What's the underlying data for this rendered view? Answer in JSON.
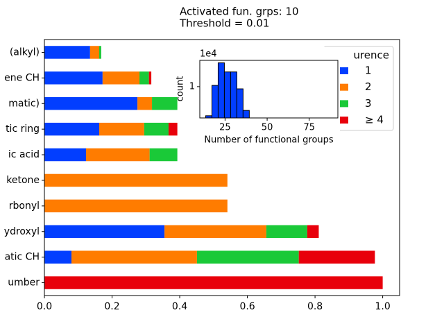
{
  "chart_data": [
    {
      "type": "barh_stacked",
      "title": [
        "Activated fun. grps: 10",
        "Threshold = 0.01"
      ],
      "categories": [
        "(alkyl)",
        "ene CH",
        "matic)",
        "tic ring",
        "ic acid",
        "ketone",
        "rbonyl",
        "ydroxyl",
        "atic CH",
        "umber"
      ],
      "series": [
        {
          "name": "1",
          "color": "#023eff",
          "values": [
            0.135,
            0.172,
            0.275,
            0.162,
            0.123,
            0,
            0,
            0.355,
            0.08,
            0
          ]
        },
        {
          "name": "2",
          "color": "#ff7c00",
          "values": [
            0.027,
            0.109,
            0.043,
            0.133,
            0.188,
            0.541,
            0.541,
            0.301,
            0.371,
            0
          ]
        },
        {
          "name": "3",
          "color": "#1ac938",
          "values": [
            0.006,
            0.028,
            0.075,
            0.072,
            0.082,
            0,
            0,
            0.121,
            0.301,
            0
          ]
        },
        {
          "name": "≥ 4",
          "color": "#e8000b",
          "values": [
            0,
            0.007,
            0,
            0.026,
            0,
            0,
            0,
            0.034,
            0.225,
            1.0
          ]
        }
      ],
      "legend_title": "urence",
      "legend": "upper right",
      "xlim": [
        0,
        1.05
      ],
      "xticks": [
        {
          "value": 0,
          "label": "0.0"
        },
        0.2,
        0.4,
        0.6,
        0.8,
        {
          "value": 1,
          "label": "1.0"
        }
      ]
    },
    {
      "type": "histogram",
      "xlabel": "Number of functional groups",
      "ylabel": "count",
      "y_offset_label": "1e4",
      "color": "#023eff",
      "bins": [
        13.5,
        17.2,
        20.9,
        24.6,
        28.3,
        32.0,
        35.7,
        39.4
      ],
      "values": [
        0.07,
        1.04,
        1.76,
        1.47,
        1.47,
        0.93,
        0.24
      ],
      "xlim": [
        10,
        92
      ],
      "ylim": [
        0,
        1.84
      ],
      "xticks": [
        25,
        50,
        75
      ],
      "yticks": [
        1
      ]
    }
  ]
}
